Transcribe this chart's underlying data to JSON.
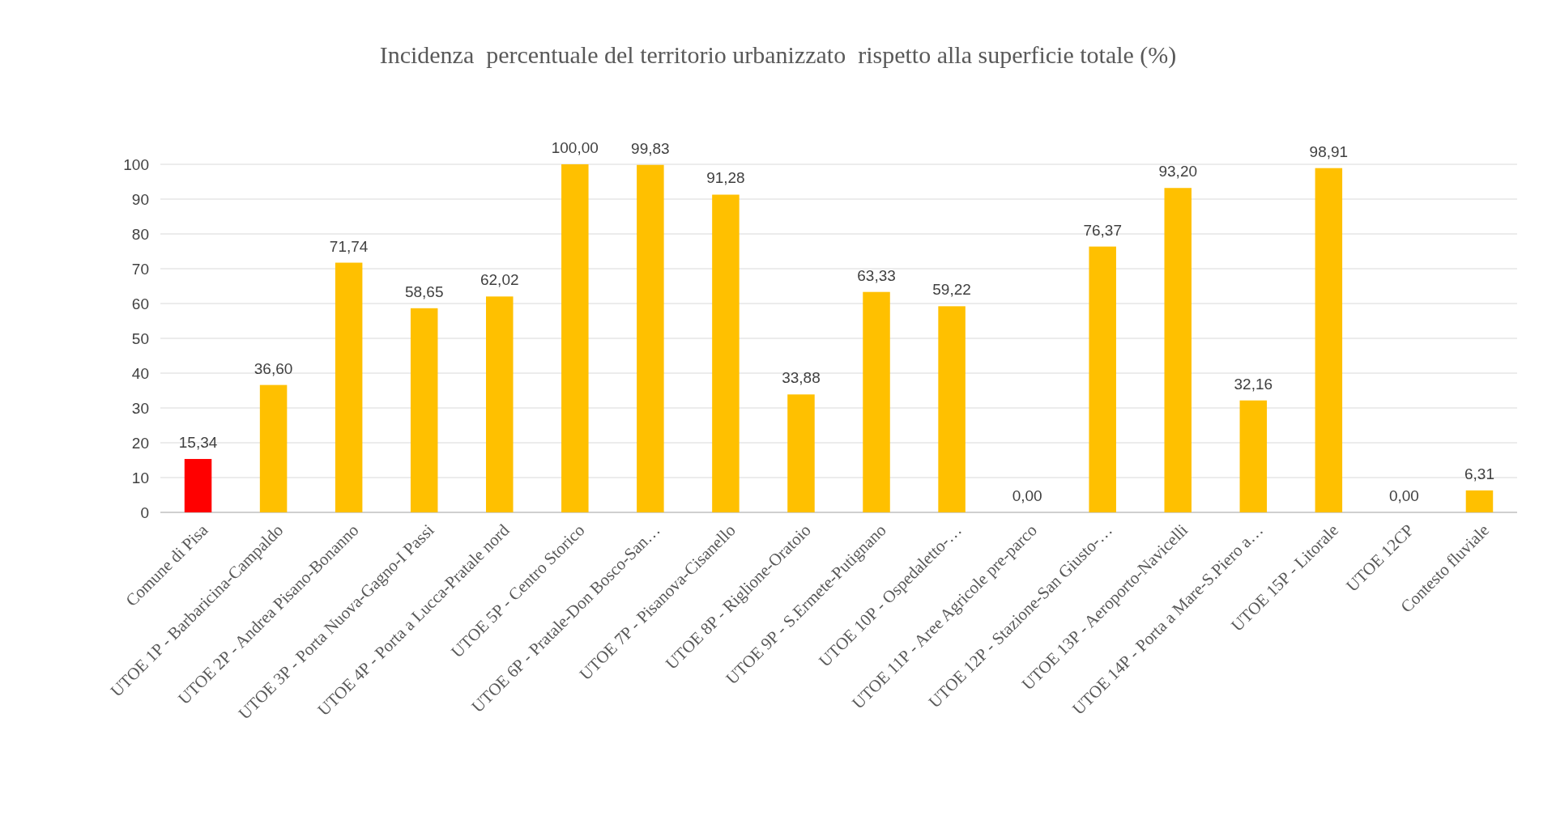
{
  "chart_data": {
    "type": "bar",
    "title": "Incidenza  percentuale del territorio urbanizzato  rispetto alla superficie totale (%)",
    "categories": [
      "Comune di Pisa",
      "UTOE 1P - Barbaricina-Campaldo",
      "UTOE 2P - Andrea Pisano-Bonanno",
      "UTOE 3P - Porta Nuova-Gagno-I Passi",
      "UTOE 4P - Porta a Lucca-Pratale nord",
      "UTOE 5P - Centro Storico",
      "UTOE 6P - Pratale-Don Bosco-San…",
      "UTOE 7P - Pisanova-Cisanello",
      "UTOE 8P - Riglione-Oratoio",
      "UTOE 9P - S.Ermete-Putignano",
      "UTOE 10P - Ospedaletto-…",
      "UTOE 11P - Aree Agricole pre-parco",
      "UTOE 12P - Stazione-San Giusto-…",
      "UTOE 13P - Aeroporto-Navicelli",
      "UTOE 14P - Porta a Mare-S.Piero a…",
      "UTOE 15P - Litorale",
      "UTOE 12CP",
      "Contesto fluviale"
    ],
    "values": [
      15.34,
      36.6,
      71.74,
      58.65,
      62.02,
      100,
      99.83,
      91.28,
      33.88,
      63.33,
      59.22,
      0,
      76.37,
      93.2,
      32.16,
      98.91,
      0,
      6.31
    ],
    "value_labels": [
      "15,34",
      "36,60",
      "71,74",
      "58,65",
      "62,02",
      "100,00",
      "99,83",
      "91,28",
      "33,88",
      "63,33",
      "59,22",
      "0,00",
      "76,37",
      "93,20",
      "32,16",
      "98,91",
      "0,00",
      "6,31"
    ],
    "colors": [
      "#ff0000",
      "#ffc000",
      "#ffc000",
      "#ffc000",
      "#ffc000",
      "#ffc000",
      "#ffc000",
      "#ffc000",
      "#ffc000",
      "#ffc000",
      "#ffc000",
      "#ffc000",
      "#ffc000",
      "#ffc000",
      "#ffc000",
      "#ffc000",
      "#ffc000",
      "#ffc000"
    ],
    "ylim": [
      0,
      100
    ],
    "yticks": [
      0,
      10,
      20,
      30,
      40,
      50,
      60,
      70,
      80,
      90,
      100
    ],
    "grid": "y"
  }
}
